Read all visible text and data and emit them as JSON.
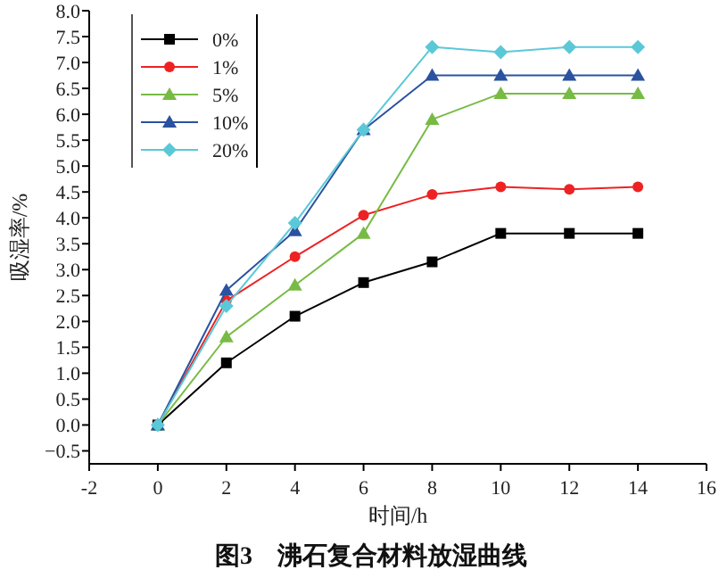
{
  "chart_data": {
    "type": "line",
    "title": "图3　沸石复合材料放湿曲线",
    "xlabel": "时间/h",
    "ylabel": "吸湿率/%",
    "x": [
      0,
      2,
      4,
      6,
      8,
      10,
      12,
      14
    ],
    "xlim": [
      -2,
      16
    ],
    "xticks": [
      -2,
      0,
      2,
      4,
      6,
      8,
      10,
      12,
      14,
      16
    ],
    "ylim": [
      -0.75,
      8.0
    ],
    "yticks": [
      {
        "value": -0.5,
        "label": "−0.5"
      },
      {
        "value": 0,
        "label": "0.0"
      },
      {
        "value": 0.5,
        "label": "0.5"
      },
      {
        "value": 1,
        "label": "1.0"
      },
      {
        "value": 1.5,
        "label": "1.5"
      },
      {
        "value": 2,
        "label": "2.0"
      },
      {
        "value": 2.5,
        "label": "2.5"
      },
      {
        "value": 3,
        "label": "3.0"
      },
      {
        "value": 3.5,
        "label": "3.5"
      },
      {
        "value": 4,
        "label": "4.0"
      },
      {
        "value": 4.5,
        "label": "4.5"
      },
      {
        "value": 5,
        "label": "5.0"
      },
      {
        "value": 5.5,
        "label": "5.5"
      },
      {
        "value": 6,
        "label": "6.0"
      },
      {
        "value": 6.5,
        "label": "6.5"
      },
      {
        "value": 7,
        "label": "7.0"
      },
      {
        "value": 7.5,
        "label": "7.5"
      },
      {
        "value": 8,
        "label": "8.0"
      }
    ],
    "legend": "top left",
    "grid": false,
    "series": [
      {
        "name": "0%",
        "color": "#000000",
        "marker": "square",
        "values": [
          0,
          1.2,
          2.1,
          2.75,
          3.15,
          3.7,
          3.7,
          3.7
        ]
      },
      {
        "name": "1%",
        "color": "#ee2222",
        "marker": "circle",
        "values": [
          0,
          2.4,
          3.25,
          4.05,
          4.45,
          4.6,
          4.55,
          4.6
        ]
      },
      {
        "name": "5%",
        "color": "#77bb44",
        "marker": "triangle",
        "values": [
          0,
          1.7,
          2.7,
          3.7,
          5.9,
          6.4,
          6.4,
          6.4
        ]
      },
      {
        "name": "10%",
        "color": "#2a52a0",
        "marker": "triangle",
        "values": [
          0,
          2.6,
          3.75,
          5.7,
          6.75,
          6.75,
          6.75,
          6.75
        ]
      },
      {
        "name": "20%",
        "color": "#5bc8d8",
        "marker": "diamond",
        "values": [
          0,
          2.3,
          3.9,
          5.7,
          7.3,
          7.2,
          7.3,
          7.3
        ]
      }
    ]
  }
}
